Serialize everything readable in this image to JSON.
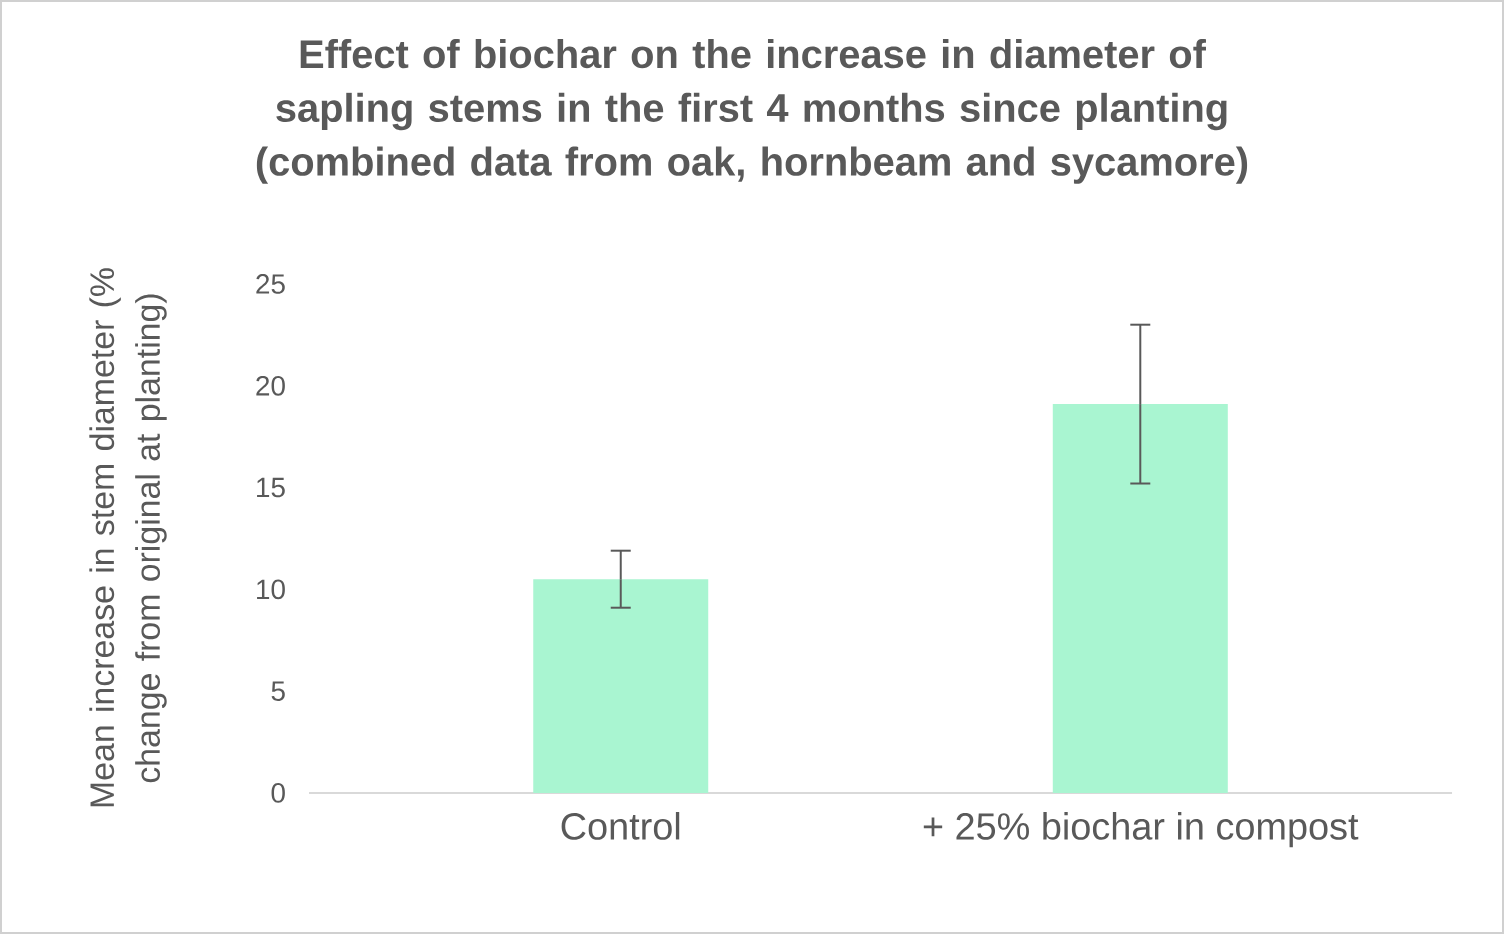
{
  "chart_data": {
    "type": "bar",
    "title": "Effect of biochar on the increase in diameter of sapling stems in the first 4 months since planting (combined data from oak, hornbeam and sycamore)",
    "ylabel": "Mean increase in stem diameter (% change from original at planting)",
    "categories": [
      "Control",
      "+ 25% biochar in compost"
    ],
    "values": [
      10.5,
      19.1
    ],
    "errors": [
      1.4,
      3.9
    ],
    "color": "#a9f5d1",
    "ylim": [
      0,
      25
    ],
    "yticks": [
      0,
      5,
      10,
      15,
      20,
      25
    ]
  }
}
